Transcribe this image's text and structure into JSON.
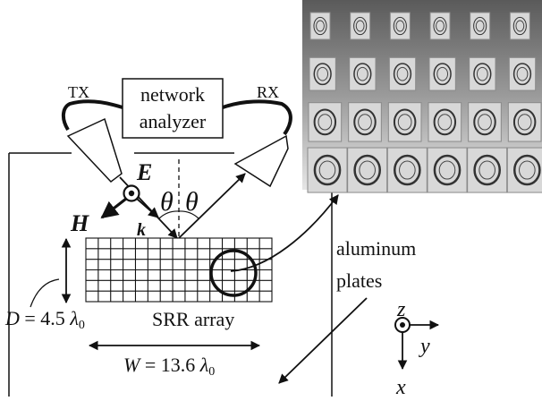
{
  "box": {
    "line1": "network",
    "line2": "analyzer"
  },
  "tx": "TX",
  "rx": "RX",
  "field": {
    "e": "E",
    "h": "H",
    "k": "k"
  },
  "angles": {
    "left": "θ",
    "right": "θ"
  },
  "array": {
    "label": "SRR array"
  },
  "dim_d": {
    "var": "D",
    "eq": " = 4.5 ",
    "lam": "λ",
    "sub": "0"
  },
  "dim_w": {
    "var": "W",
    "eq": " = 13.6 ",
    "lam": "λ",
    "sub": "0"
  },
  "plates": {
    "line1": "aluminum",
    "line2": "plates"
  },
  "axes": {
    "z": "z",
    "y": "y",
    "x": "x"
  },
  "photo": {
    "rows": 4,
    "cols": 6
  }
}
